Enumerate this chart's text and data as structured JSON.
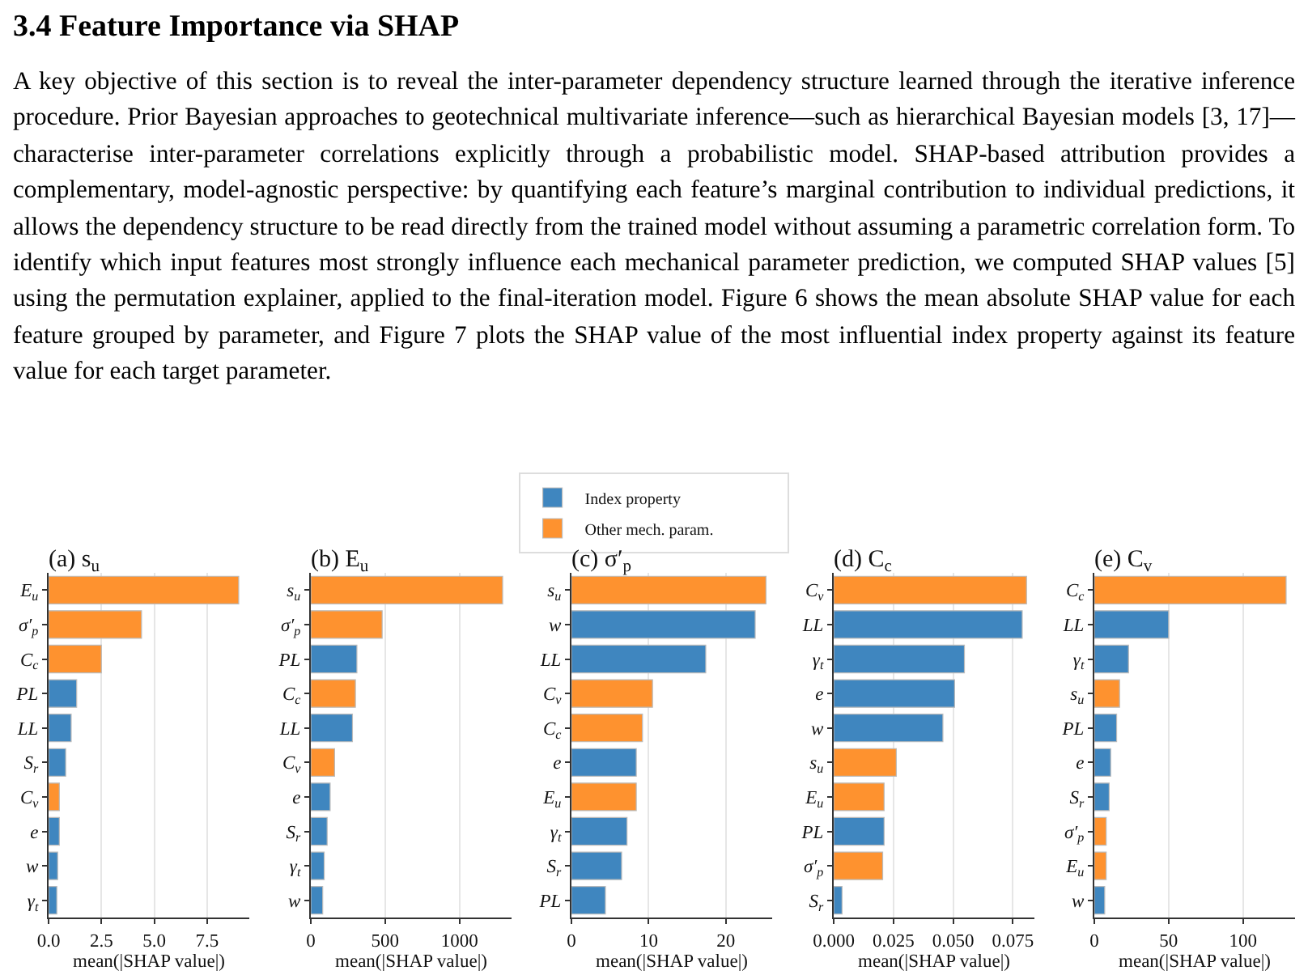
{
  "chart_data": [
    {
      "type": "bar",
      "orientation": "horizontal",
      "title": "(a) s$_{u}$",
      "xlabel": "mean(|SHAP value|)",
      "annotations": [
        "3.4   Feature Importance via SHAP",
        "A key objective of this section is to reveal the inter-parameter dependency structure learned through the iterative inference procedure. Prior Bayesian approaches to geotechnical multivariate inference—such as hierarchical Bayesian models [3, 17]—characterise inter-parameter correlations explicitly through a probabilistic model. SHAP-based attribution provides a complementary, model-agnostic perspective: by quantifying each feature’s marginal contribution to individual predictions, it allows the dependency structure to be read directly from the trained model without assuming a parametric correlation form. To identify which input features most strongly influence each mechanical parameter prediction, we computed SHAP values [5] using the permutation explainer, applied to the final-iteration model. Figure 6 shows the mean absolute SHAP value for each feature grouped by parameter, and Figure 7 plots the SHAP value of the most influential index property against its feature value for each target parameter."
      ],
      "categories": [
        "E$_{u}$",
        "σ′$_{p}$",
        "C$_{c}$",
        "PL",
        "LL",
        "S$_{r}$",
        "C$_{v}$",
        "e",
        "w",
        "γ$_{t}$"
      ],
      "series": [
        {
          "color": "#3f86bf",
          "values": [
            null,
            null,
            null,
            1.33,
            1.07,
            0.81,
            null,
            0.51,
            0.43,
            0.39
          ]
        },
        {
          "color": "#fe922f",
          "values": [
            9.0,
            4.4,
            2.5,
            null,
            null,
            null,
            0.51,
            null,
            null,
            null
          ]
        }
      ],
      "xlim": [
        0,
        9.5
      ],
      "xticks": [
        {
          "value": 0,
          "label": "0.0"
        },
        2.5,
        {
          "value": 5,
          "label": "5.0"
        },
        7.5
      ],
      "grid": "x"
    },
    {
      "type": "bar",
      "orientation": "horizontal",
      "title": "(b) E$_{u}$",
      "xlabel": "mean(|SHAP value|)",
      "categories": [
        "s$_{u}$",
        "σ′$_{p}$",
        "PL",
        "C$_{c}$",
        "LL",
        "C$_{v}$",
        "e",
        "S$_{r}$",
        "γ$_{t}$",
        "w"
      ],
      "series": [
        {
          "color": "#3f86bf",
          "values": [
            null,
            null,
            310,
            null,
            280,
            null,
            130,
            110,
            90,
            80
          ]
        },
        {
          "color": "#fe922f",
          "values": [
            1290,
            480,
            null,
            300,
            null,
            160,
            null,
            null,
            null,
            null
          ]
        }
      ],
      "xlim": [
        0,
        1350
      ],
      "xticks": [
        0,
        500,
        1000
      ],
      "grid": "x"
    },
    {
      "type": "bar",
      "orientation": "horizontal",
      "title": "(c) σ′$_{p}$",
      "xlabel": "mean(|SHAP value|)",
      "legend": "top",
      "categories": [
        "s$_{u}$",
        "w",
        "LL",
        "C$_{v}$",
        "C$_{c}$",
        "e",
        "E$_{u}$",
        "γ$_{t}$",
        "S$_{r}$",
        "PL"
      ],
      "series": [
        {
          "name": "Index property",
          "color": "#3f86bf",
          "values": [
            null,
            23.8,
            17.4,
            null,
            null,
            8.4,
            null,
            7.2,
            6.5,
            4.4
          ]
        },
        {
          "name": "Other mech. param.",
          "color": "#fe922f",
          "values": [
            25.2,
            null,
            null,
            10.5,
            9.2,
            null,
            8.4,
            null,
            null,
            null
          ]
        }
      ],
      "xlim": [
        0,
        26
      ],
      "xticks": [
        0,
        10,
        20
      ],
      "grid": "x"
    },
    {
      "type": "bar",
      "orientation": "horizontal",
      "title": "(d) C$_{c}$",
      "xlabel": "mean(|SHAP value|)",
      "categories": [
        "C$_{v}$",
        "LL",
        "γ$_{t}$",
        "e",
        "w",
        "s$_{u}$",
        "E$_{u}$",
        "PL",
        "σ′$_{p}$",
        "S$_{r}$"
      ],
      "series": [
        {
          "color": "#3f86bf",
          "values": [
            null,
            0.0789,
            0.0547,
            0.0506,
            0.0457,
            null,
            null,
            0.0211,
            null,
            0.0035
          ]
        },
        {
          "color": "#fe922f",
          "values": [
            0.0807,
            null,
            null,
            null,
            null,
            0.0262,
            0.0211,
            null,
            0.0205,
            null
          ]
        }
      ],
      "xlim": [
        0,
        0.084
      ],
      "xticks": [
        {
          "value": 0,
          "label": "0.000"
        },
        0.025,
        {
          "value": 0.05,
          "label": "0.050"
        },
        0.075
      ],
      "grid": "x"
    },
    {
      "type": "bar",
      "orientation": "horizontal",
      "title": "(e) C$_{v}$",
      "xlabel": "mean(|SHAP value|)",
      "categories": [
        "C$_{c}$",
        "LL",
        "γ$_{t}$",
        "s$_{u}$",
        "PL",
        "e",
        "S$_{r}$",
        "σ′$_{p}$",
        "E$_{u}$",
        "w"
      ],
      "series": [
        {
          "color": "#3f86bf",
          "values": [
            null,
            50,
            23,
            null,
            15,
            11,
            10,
            null,
            null,
            7
          ]
        },
        {
          "color": "#fe922f",
          "values": [
            129,
            null,
            null,
            17,
            null,
            null,
            null,
            8,
            8,
            null
          ]
        }
      ],
      "xlim": [
        0,
        135
      ],
      "xticks": [
        0,
        50,
        100
      ],
      "grid": "x"
    }
  ]
}
